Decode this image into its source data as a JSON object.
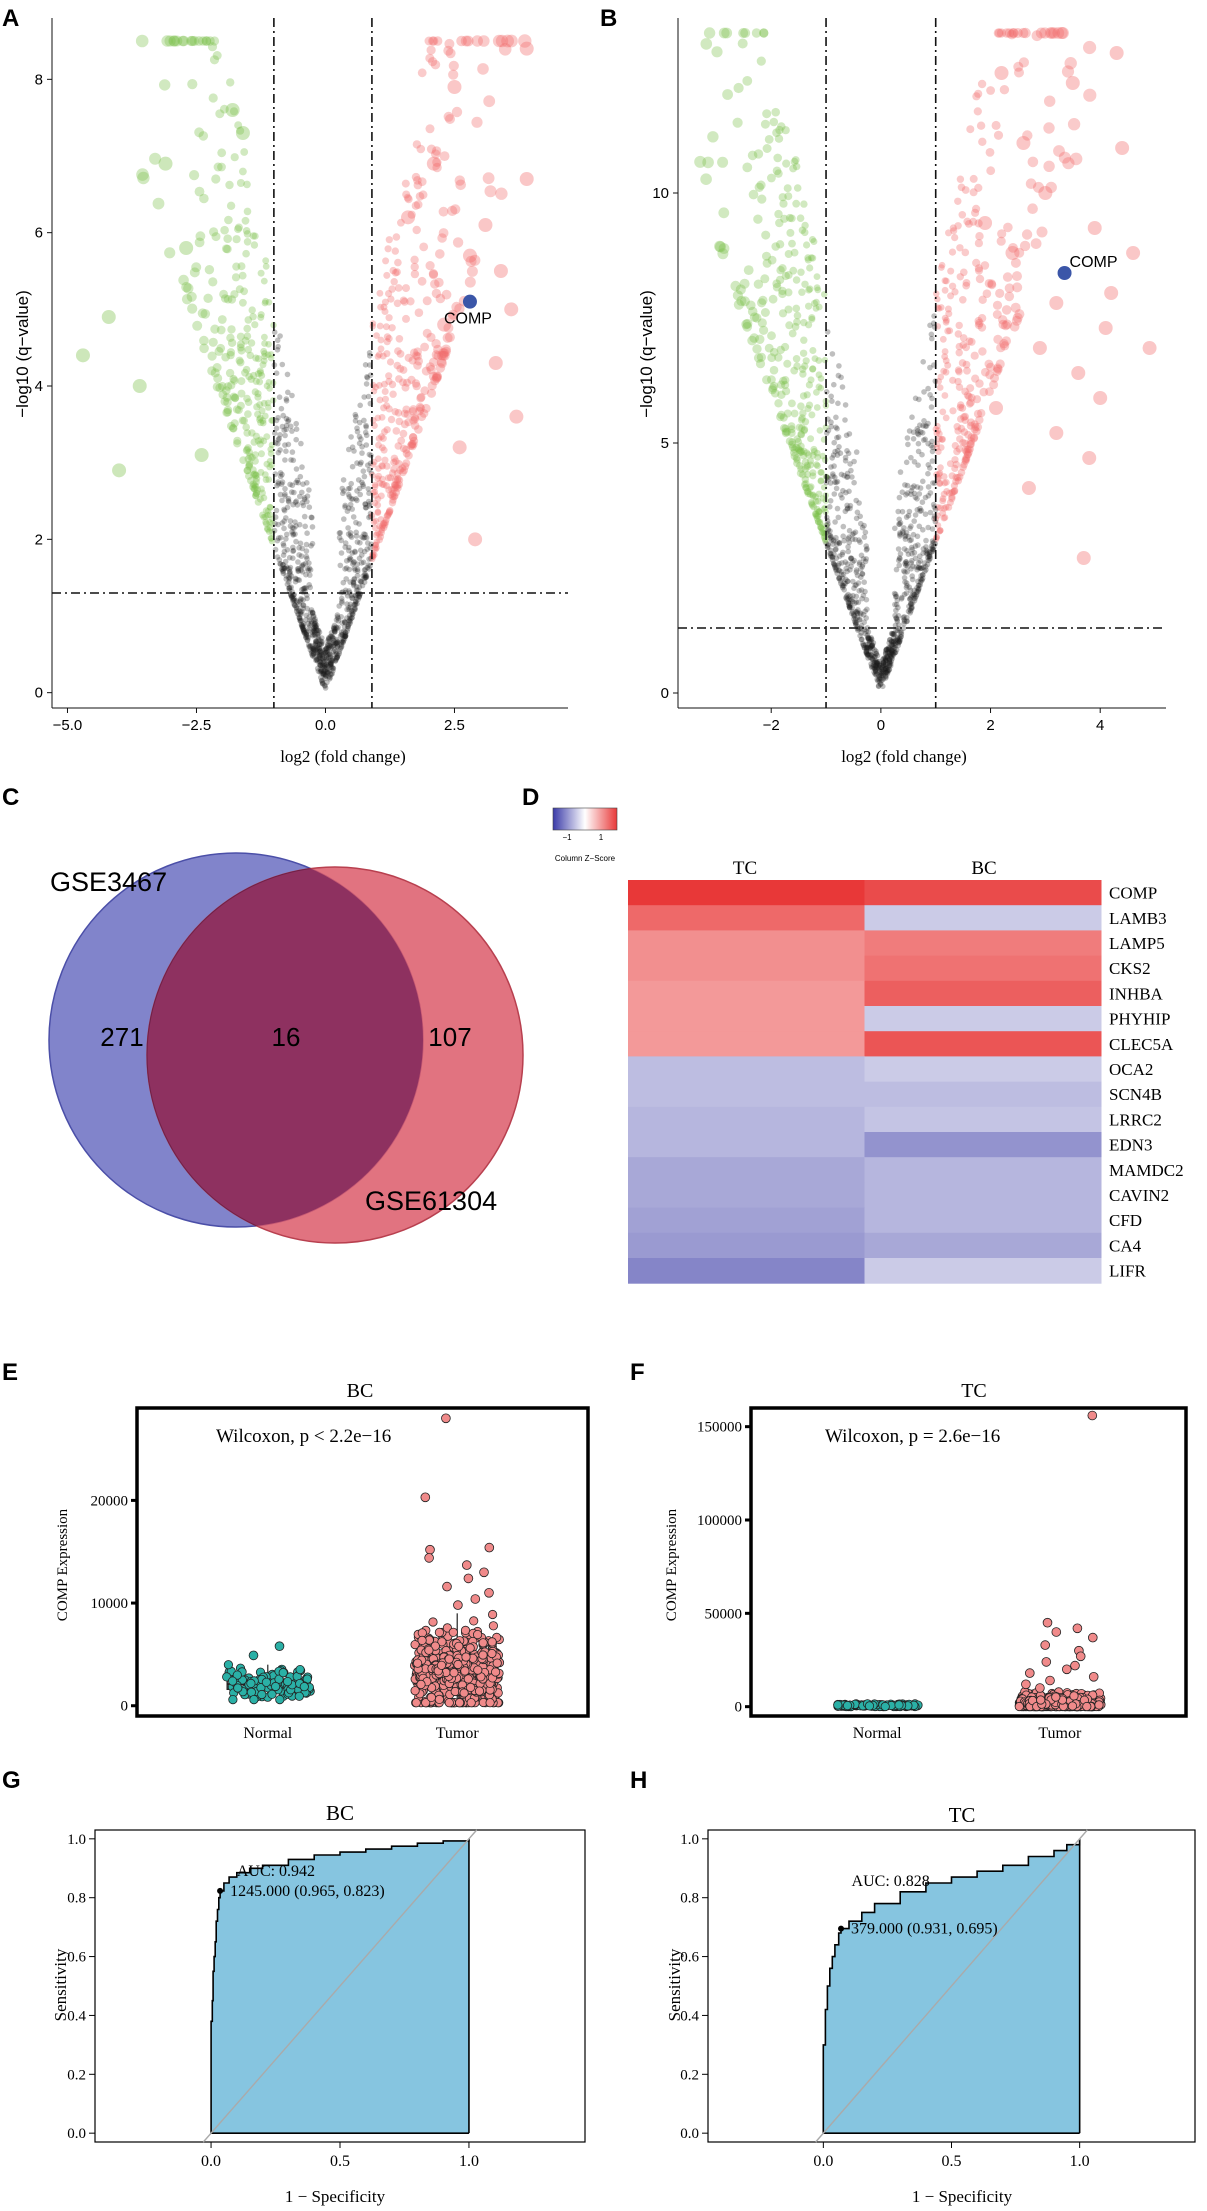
{
  "panel_labels": [
    "A",
    "B",
    "C",
    "D",
    "E",
    "F",
    "G",
    "H"
  ],
  "colors": {
    "up": "#f26b6b",
    "down": "#7cc04a",
    "ns": "#1a1a1a",
    "highlight": "#3b56a8",
    "venn_left": "#6b6fc2",
    "venn_right": "#dc5a6a",
    "venn_overlap": "#8e3160",
    "roc_fill": "#86c5e0",
    "normal": "#2ab0a6",
    "tumor": "#f08a8a"
  },
  "chart_data": [
    {
      "id": "A",
      "type": "scatter",
      "subtype": "volcano",
      "xlabel": "log2 (fold change)",
      "ylabel": "−log10 (q−value)",
      "xlim": [
        -5.3,
        4.7
      ],
      "ylim": [
        -0.2,
        8.8
      ],
      "xticks": [
        -5.0,
        -2.5,
        0.0,
        2.5
      ],
      "xtick_labels": [
        "−5.0",
        "−2.5",
        "0.0",
        "2.5"
      ],
      "yticks": [
        0,
        2,
        4,
        6,
        8
      ],
      "ytick_labels": [
        "0",
        "2",
        "4",
        "6",
        "8"
      ],
      "fc_threshold": [
        -1.0,
        0.9
      ],
      "q_threshold": 1.3,
      "highlight": {
        "label": "COMP",
        "x": 2.8,
        "y": 5.1
      },
      "large_points": [
        [
          -4.2,
          4.9
        ],
        [
          -4.7,
          4.4
        ],
        [
          -3.1,
          6.9
        ],
        [
          -2.7,
          5.8
        ],
        [
          -1.8,
          7.6
        ],
        [
          -1.6,
          7.3
        ],
        [
          -3.6,
          4.0
        ],
        [
          -4.0,
          2.9
        ],
        [
          -2.4,
          3.1
        ],
        [
          3.9,
          8.4
        ],
        [
          3.9,
          6.7
        ],
        [
          2.5,
          7.9
        ],
        [
          2.8,
          5.7
        ],
        [
          3.1,
          6.1
        ],
        [
          3.6,
          5.0
        ],
        [
          3.3,
          4.3
        ],
        [
          3.7,
          3.6
        ],
        [
          2.6,
          3.2
        ],
        [
          2.9,
          2.0
        ],
        [
          2.1,
          6.9
        ],
        [
          2.3,
          4.8
        ],
        [
          1.6,
          6.2
        ],
        [
          3.4,
          5.5
        ]
      ]
    },
    {
      "id": "B",
      "type": "scatter",
      "subtype": "volcano",
      "xlabel": "log2 (fold change)",
      "ylabel": "−log10 (q−value)",
      "xlim": [
        -3.7,
        5.2
      ],
      "ylim": [
        -0.3,
        13.5
      ],
      "xticks": [
        -2,
        0,
        2,
        4
      ],
      "xtick_labels": [
        "−2",
        "0",
        "2",
        "4"
      ],
      "yticks": [
        0,
        5,
        10
      ],
      "ytick_labels": [
        "0",
        "5",
        "10"
      ],
      "fc_threshold": [
        -1.0,
        1.0
      ],
      "q_threshold": 1.3,
      "highlight": {
        "label": "COMP",
        "x": 3.35,
        "y": 8.4
      },
      "large_points": [
        [
          4.3,
          12.8
        ],
        [
          4.4,
          10.9
        ],
        [
          4.9,
          6.9
        ],
        [
          4.6,
          8.8
        ],
        [
          4.1,
          7.3
        ],
        [
          3.5,
          12.2
        ],
        [
          3.9,
          9.3
        ],
        [
          3.2,
          7.8
        ],
        [
          4.0,
          5.9
        ],
        [
          3.8,
          4.7
        ],
        [
          3.7,
          2.7
        ],
        [
          2.2,
          12.4
        ],
        [
          2.6,
          11.0
        ],
        [
          3.0,
          10.0
        ],
        [
          2.4,
          8.8
        ],
        [
          2.9,
          6.9
        ],
        [
          2.1,
          5.7
        ],
        [
          3.2,
          5.2
        ],
        [
          2.7,
          4.1
        ],
        [
          1.9,
          9.4
        ],
        [
          4.2,
          8.0
        ],
        [
          3.6,
          6.4
        ]
      ]
    },
    {
      "id": "C",
      "type": "venn",
      "sets": [
        {
          "name": "GSE3467",
          "only": "271"
        },
        {
          "name": "GSE61304",
          "only": "107"
        }
      ],
      "overlap": "16"
    },
    {
      "id": "D",
      "type": "heatmap",
      "legend_title": "Column Z−Score",
      "legend_ticks": [
        "−1",
        "1"
      ],
      "columns": [
        "TC",
        "BC"
      ],
      "rows": [
        "COMP",
        "LAMB3",
        "LAMP5",
        "CKS2",
        "INHBA",
        "PHYHIP",
        "CLEC5A",
        "OCA2",
        "SCN4B",
        "LRRC2",
        "EDN3",
        "MAMDC2",
        "CAVIN2",
        "CFD",
        "CA4",
        "LIFR"
      ],
      "values": [
        [
          1.6,
          1.4
        ],
        [
          1.1,
          -0.3
        ],
        [
          0.7,
          0.9
        ],
        [
          0.7,
          1.0
        ],
        [
          0.6,
          1.2
        ],
        [
          0.6,
          -0.3
        ],
        [
          0.6,
          1.3
        ],
        [
          -0.5,
          -0.3
        ],
        [
          -0.5,
          -0.5
        ],
        [
          -0.6,
          -0.4
        ],
        [
          -0.6,
          -1.1
        ],
        [
          -0.8,
          -0.6
        ],
        [
          -0.8,
          -0.6
        ],
        [
          -0.9,
          -0.6
        ],
        [
          -1.0,
          -0.8
        ],
        [
          -1.3,
          -0.3
        ]
      ]
    },
    {
      "id": "E",
      "type": "box",
      "title": "BC",
      "ylabel": "COMP Expression",
      "categories": [
        "Normal",
        "Tumor"
      ],
      "ylim": [
        -1000,
        29000
      ],
      "yticks": [
        0,
        10000,
        20000
      ],
      "ytick_labels": [
        "0",
        "10000",
        "20000"
      ],
      "annotation": "Wilcoxon, p < 2.2e−16",
      "boxes": [
        {
          "category": "Normal",
          "min": 600,
          "q1": 1600,
          "median": 2100,
          "q3": 2600,
          "max": 4000
        },
        {
          "category": "Tumor",
          "min": 300,
          "q1": 2300,
          "median": 3300,
          "q3": 5000,
          "max": 9000
        }
      ],
      "outliers": {
        "Normal": [
          5800,
          4900
        ],
        "Tumor": [
          28000,
          20300,
          15400,
          15200,
          14400,
          13700,
          13000,
          12400,
          11600,
          11000,
          10400,
          9800
        ]
      }
    },
    {
      "id": "F",
      "type": "box",
      "title": "TC",
      "ylabel": "COMP Expression",
      "categories": [
        "Normal",
        "Tumor"
      ],
      "ylim": [
        -5000,
        160000
      ],
      "yticks": [
        0,
        50000,
        100000,
        150000
      ],
      "ytick_labels": [
        "0",
        "50000",
        "100000",
        "150000"
      ],
      "annotation": "Wilcoxon, p = 2.6e−16",
      "boxes": [
        {
          "category": "Normal",
          "min": 100,
          "q1": 300,
          "median": 600,
          "q3": 900,
          "max": 1600
        },
        {
          "category": "Tumor",
          "min": 100,
          "q1": 1000,
          "median": 2000,
          "q3": 4000,
          "max": 8000
        }
      ],
      "outliers": {
        "Normal": [],
        "Tumor": [
          156000,
          45000,
          42000,
          40000,
          37000,
          33000,
          30000,
          27000,
          24000,
          22000,
          20000,
          18000,
          16000,
          14000,
          12000,
          10000
        ]
      }
    },
    {
      "id": "G",
      "type": "area",
      "subtype": "roc",
      "title": "BC",
      "xlabel": "1 − Specificity",
      "ylabel": "Sensitivity",
      "xlim": [
        -0.45,
        1.45
      ],
      "ylim": [
        -0.03,
        1.03
      ],
      "xticks": [
        0.0,
        0.5,
        1.0
      ],
      "xtick_labels": [
        "0.0",
        "0.5",
        "1.0"
      ],
      "yticks": [
        0.0,
        0.2,
        0.4,
        0.6,
        0.8,
        1.0
      ],
      "ytick_labels": [
        "0.0",
        "0.2",
        "0.4",
        "0.6",
        "0.8",
        "1.0"
      ],
      "auc_label": "AUC: 0.942",
      "threshold_label": "1245.000 (0.965, 0.823)",
      "threshold_point": [
        0.035,
        0.823
      ],
      "curve": [
        [
          0,
          0
        ],
        [
          0,
          0.38
        ],
        [
          0.005,
          0.45
        ],
        [
          0.008,
          0.55
        ],
        [
          0.012,
          0.6
        ],
        [
          0.016,
          0.65
        ],
        [
          0.02,
          0.72
        ],
        [
          0.025,
          0.76
        ],
        [
          0.03,
          0.8
        ],
        [
          0.035,
          0.823
        ],
        [
          0.05,
          0.85
        ],
        [
          0.07,
          0.87
        ],
        [
          0.1,
          0.885
        ],
        [
          0.15,
          0.9
        ],
        [
          0.2,
          0.91
        ],
        [
          0.3,
          0.93
        ],
        [
          0.4,
          0.945
        ],
        [
          0.5,
          0.955
        ],
        [
          0.6,
          0.965
        ],
        [
          0.7,
          0.975
        ],
        [
          0.8,
          0.985
        ],
        [
          0.9,
          0.993
        ],
        [
          1.0,
          1.0
        ]
      ]
    },
    {
      "id": "H",
      "type": "area",
      "subtype": "roc",
      "title": "TC",
      "xlabel": "1 − Specificity",
      "ylabel": "Sensitivity",
      "xlim": [
        -0.45,
        1.45
      ],
      "ylim": [
        -0.03,
        1.03
      ],
      "xticks": [
        0.0,
        0.5,
        1.0
      ],
      "xtick_labels": [
        "0.0",
        "0.5",
        "1.0"
      ],
      "yticks": [
        0.0,
        0.2,
        0.4,
        0.6,
        0.8,
        1.0
      ],
      "ytick_labels": [
        "0.0",
        "0.2",
        "0.4",
        "0.6",
        "0.8",
        "1.0"
      ],
      "auc_label": "AUC: 0.828",
      "threshold_label": "379.000 (0.931, 0.695)",
      "threshold_point": [
        0.069,
        0.695
      ],
      "curve": [
        [
          0,
          0
        ],
        [
          0,
          0.3
        ],
        [
          0.008,
          0.42
        ],
        [
          0.016,
          0.5
        ],
        [
          0.025,
          0.56
        ],
        [
          0.035,
          0.6
        ],
        [
          0.045,
          0.64
        ],
        [
          0.06,
          0.68
        ],
        [
          0.069,
          0.695
        ],
        [
          0.1,
          0.72
        ],
        [
          0.15,
          0.75
        ],
        [
          0.2,
          0.78
        ],
        [
          0.3,
          0.82
        ],
        [
          0.4,
          0.85
        ],
        [
          0.5,
          0.87
        ],
        [
          0.6,
          0.89
        ],
        [
          0.7,
          0.91
        ],
        [
          0.8,
          0.94
        ],
        [
          0.9,
          0.96
        ],
        [
          0.95,
          0.98
        ],
        [
          1.0,
          1.0
        ]
      ]
    }
  ]
}
